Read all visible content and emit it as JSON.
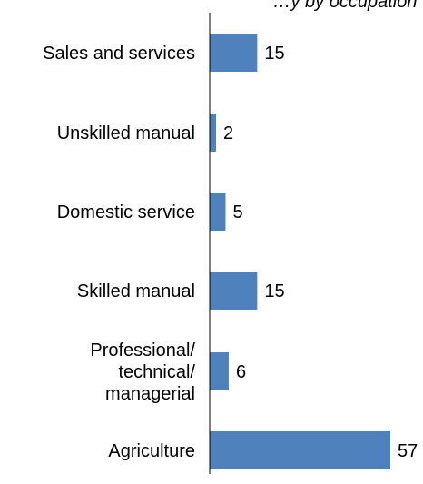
{
  "chart_data": {
    "type": "bar",
    "orientation": "horizontal",
    "title": "…y by occupation",
    "categories": [
      "Sales and services",
      "Unskilled manual",
      "Domestic service",
      "Skilled manual",
      "Professional/ technical/ managerial",
      "Agriculture"
    ],
    "category_lines": [
      [
        "Sales and services"
      ],
      [
        "Unskilled manual"
      ],
      [
        "Domestic service"
      ],
      [
        "Skilled manual"
      ],
      [
        "Professional/",
        "technical/",
        "managerial"
      ],
      [
        "Agriculture"
      ]
    ],
    "values": [
      15,
      2,
      5,
      15,
      6,
      57
    ],
    "xlim": [
      0,
      60
    ],
    "grid": false,
    "legend": "none",
    "bar_color": "#4F81BD",
    "axis_color": "#000000"
  }
}
